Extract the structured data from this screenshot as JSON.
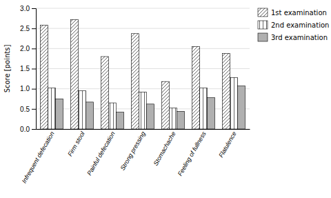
{
  "chart_data": {
    "type": "bar",
    "categories": [
      "Infrequent defecation",
      "Firm stool",
      "Painful defecation",
      "Strong pressing",
      "Stomachache",
      "Feeling of fullness",
      "Flatulence"
    ],
    "series": [
      {
        "name": "1st examination",
        "color": "white",
        "values": [
          2.58,
          2.72,
          1.8,
          2.37,
          1.18,
          2.05,
          1.88
        ]
      },
      {
        "name": "2nd examination",
        "color": "white",
        "values": [
          1.02,
          0.95,
          0.65,
          0.92,
          0.52,
          1.02,
          1.28
        ]
      },
      {
        "name": "3rd examination",
        "color": "#b0b0b0",
        "values": [
          0.75,
          0.67,
          0.42,
          0.62,
          0.44,
          0.78,
          1.07
        ]
      }
    ],
    "ylabel": "Score [points]",
    "ylim": [
      0,
      3
    ],
    "yticks": [
      {
        "value": 0,
        "label": "0.0"
      },
      0.5,
      {
        "value": 1.0,
        "label": "1.0"
      },
      1.5,
      {
        "value": 2.0,
        "label": "2.0"
      },
      2.5,
      {
        "value": 3.0,
        "label": "3.0"
      }
    ],
    "grid": true,
    "legend": "upper right"
  }
}
